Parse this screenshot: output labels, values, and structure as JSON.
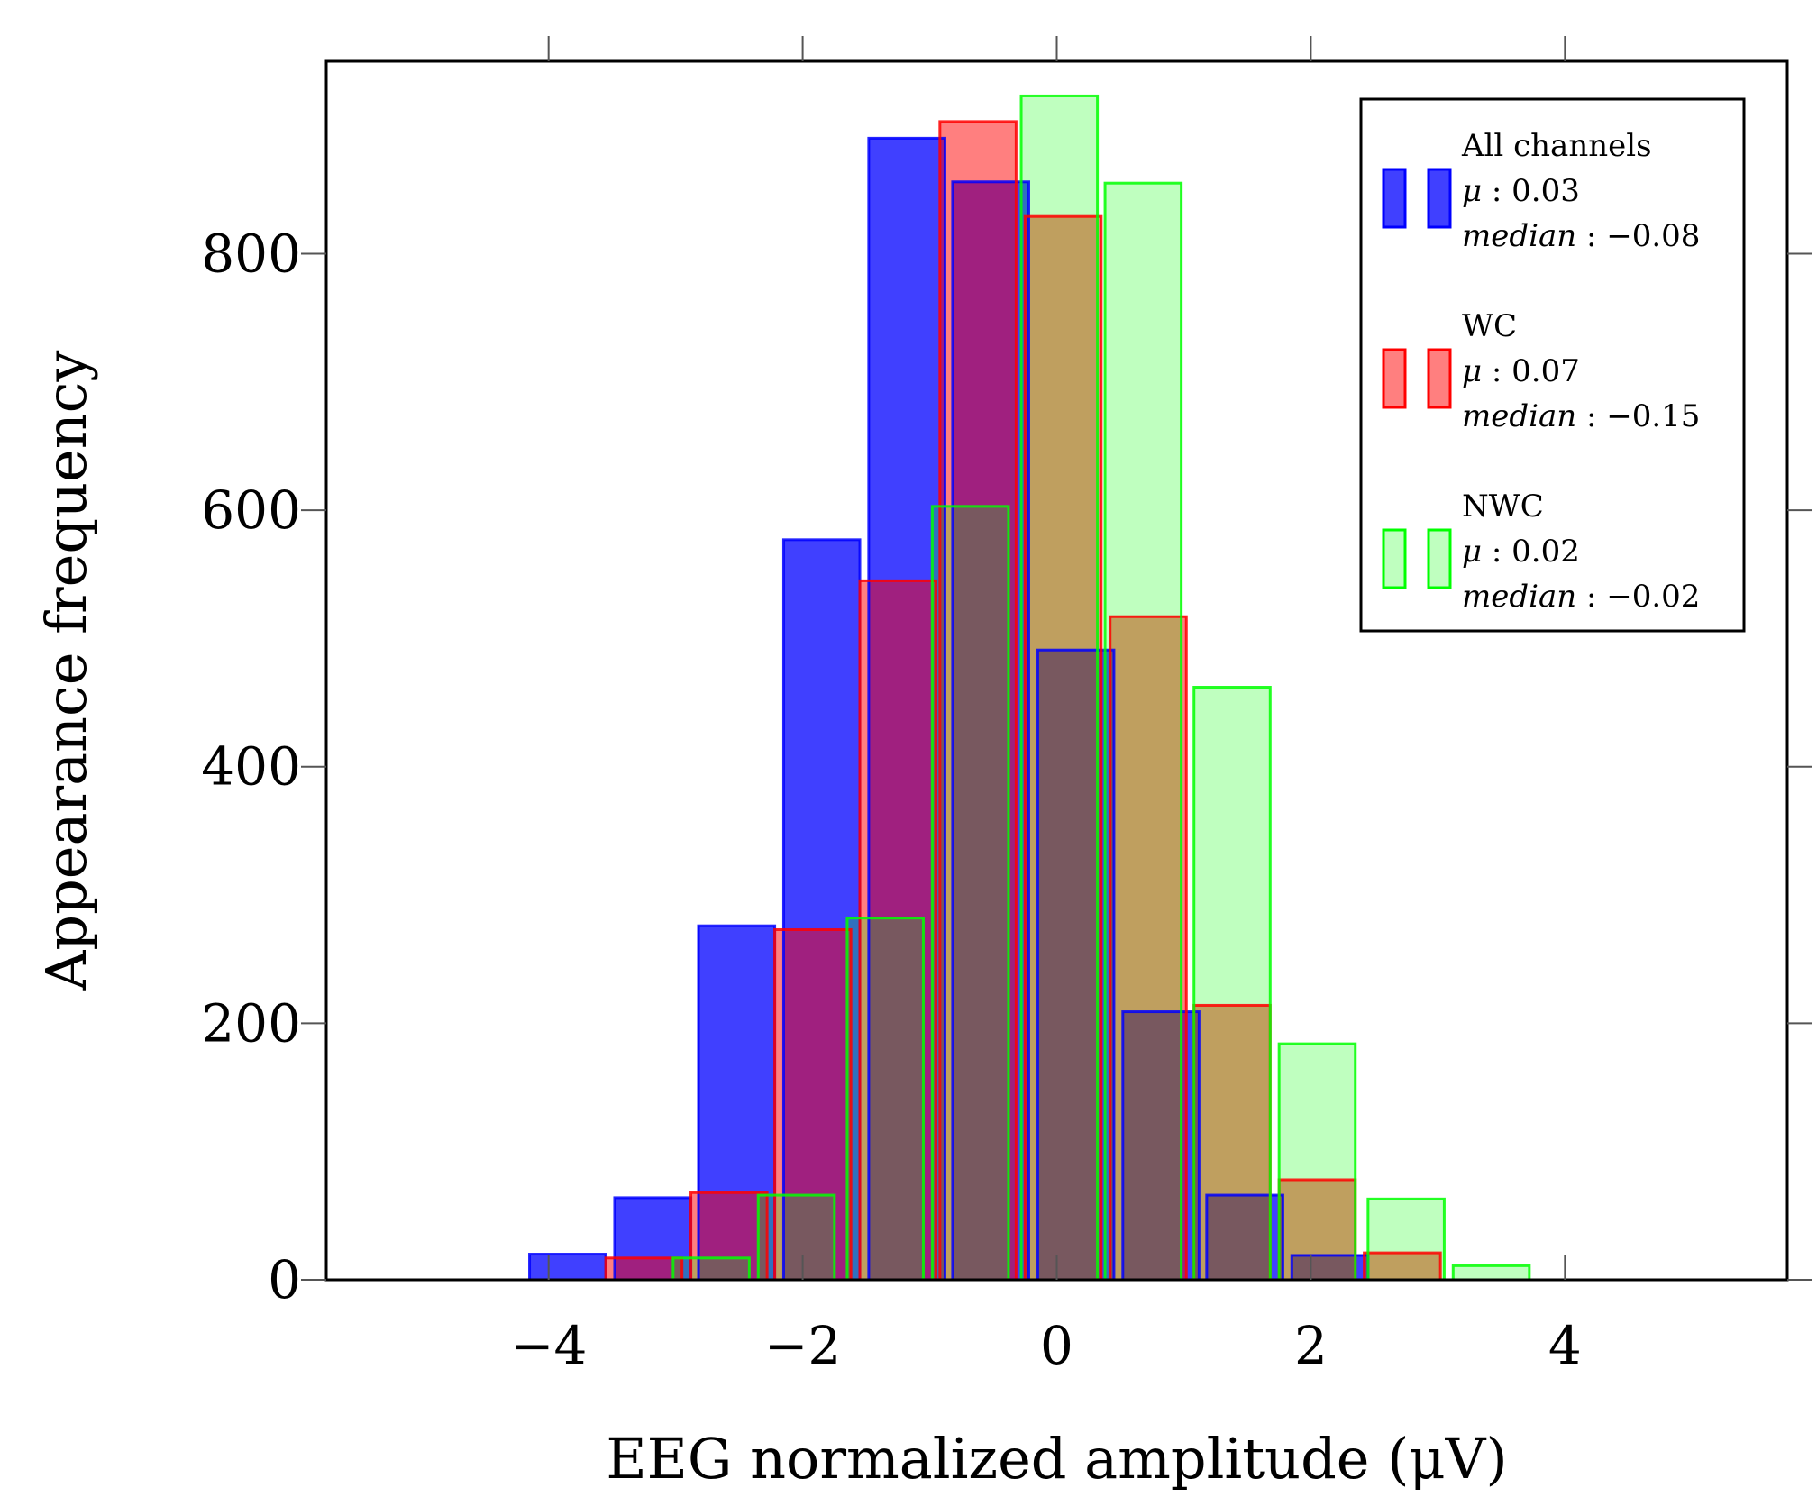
{
  "chart_data": {
    "type": "bar",
    "title": "",
    "xlabel": "EEG normalized amplitude (μV)",
    "ylabel": "Appearance frequency",
    "xlim": [
      -5.75,
      5.75
    ],
    "ylim": [
      0,
      950
    ],
    "xticks": [
      -4,
      -2,
      0,
      2,
      4
    ],
    "xtick_labels": [
      "−4",
      "−2",
      "0",
      "2",
      "4"
    ],
    "yticks": [
      0,
      200,
      400,
      600,
      800
    ],
    "ytick_labels": [
      "0",
      "200",
      "400",
      "600",
      "800"
    ],
    "grid": false,
    "legend_position": "top-right",
    "series": [
      {
        "name": "All channels",
        "stat_mean": "0.03",
        "stat_median": "−0.08",
        "color": "#0000ff",
        "fill_opacity": 0.75,
        "bins": [
          {
            "x0": -4.15,
            "x1": -3.55,
            "value": 20
          },
          {
            "x0": -3.48,
            "x1": -2.88,
            "value": 64
          },
          {
            "x0": -2.82,
            "x1": -2.22,
            "value": 276
          },
          {
            "x0": -2.15,
            "x1": -1.55,
            "value": 577
          },
          {
            "x0": -1.48,
            "x1": -0.88,
            "value": 890
          },
          {
            "x0": -0.82,
            "x1": -0.22,
            "value": 856
          },
          {
            "x0": -0.15,
            "x1": 0.45,
            "value": 491
          },
          {
            "x0": 0.52,
            "x1": 1.12,
            "value": 209
          },
          {
            "x0": 1.18,
            "x1": 1.78,
            "value": 66
          },
          {
            "x0": 1.85,
            "x1": 2.45,
            "value": 19
          }
        ]
      },
      {
        "name": "WC",
        "stat_mean": "0.07",
        "stat_median": "−0.15",
        "color": "#ff0000",
        "fill_opacity": 0.5,
        "bins": [
          {
            "x0": -3.55,
            "x1": -2.95,
            "value": 17
          },
          {
            "x0": -2.88,
            "x1": -2.28,
            "value": 68
          },
          {
            "x0": -2.22,
            "x1": -1.62,
            "value": 273
          },
          {
            "x0": -1.55,
            "x1": -0.95,
            "value": 545
          },
          {
            "x0": -0.92,
            "x1": -0.32,
            "value": 903
          },
          {
            "x0": -0.25,
            "x1": 0.35,
            "value": 829
          },
          {
            "x0": 0.42,
            "x1": 1.02,
            "value": 517
          },
          {
            "x0": 1.08,
            "x1": 1.68,
            "value": 214
          },
          {
            "x0": 1.75,
            "x1": 2.35,
            "value": 78
          },
          {
            "x0": 2.42,
            "x1": 3.02,
            "value": 21
          }
        ]
      },
      {
        "name": "NWC",
        "stat_mean": "0.02",
        "stat_median": "−0.02",
        "color": "#00ff00",
        "fill_opacity": 0.25,
        "bins": [
          {
            "x0": -3.02,
            "x1": -2.42,
            "value": 17
          },
          {
            "x0": -2.35,
            "x1": -1.75,
            "value": 66
          },
          {
            "x0": -1.65,
            "x1": -1.05,
            "value": 282
          },
          {
            "x0": -0.98,
            "x1": -0.38,
            "value": 603
          },
          {
            "x0": -0.28,
            "x1": 0.32,
            "value": 923
          },
          {
            "x0": 0.38,
            "x1": 0.98,
            "value": 855
          },
          {
            "x0": 1.08,
            "x1": 1.68,
            "value": 462
          },
          {
            "x0": 1.75,
            "x1": 2.35,
            "value": 184
          },
          {
            "x0": 2.45,
            "x1": 3.05,
            "value": 63
          },
          {
            "x0": 3.12,
            "x1": 3.72,
            "value": 11
          }
        ]
      }
    ]
  }
}
